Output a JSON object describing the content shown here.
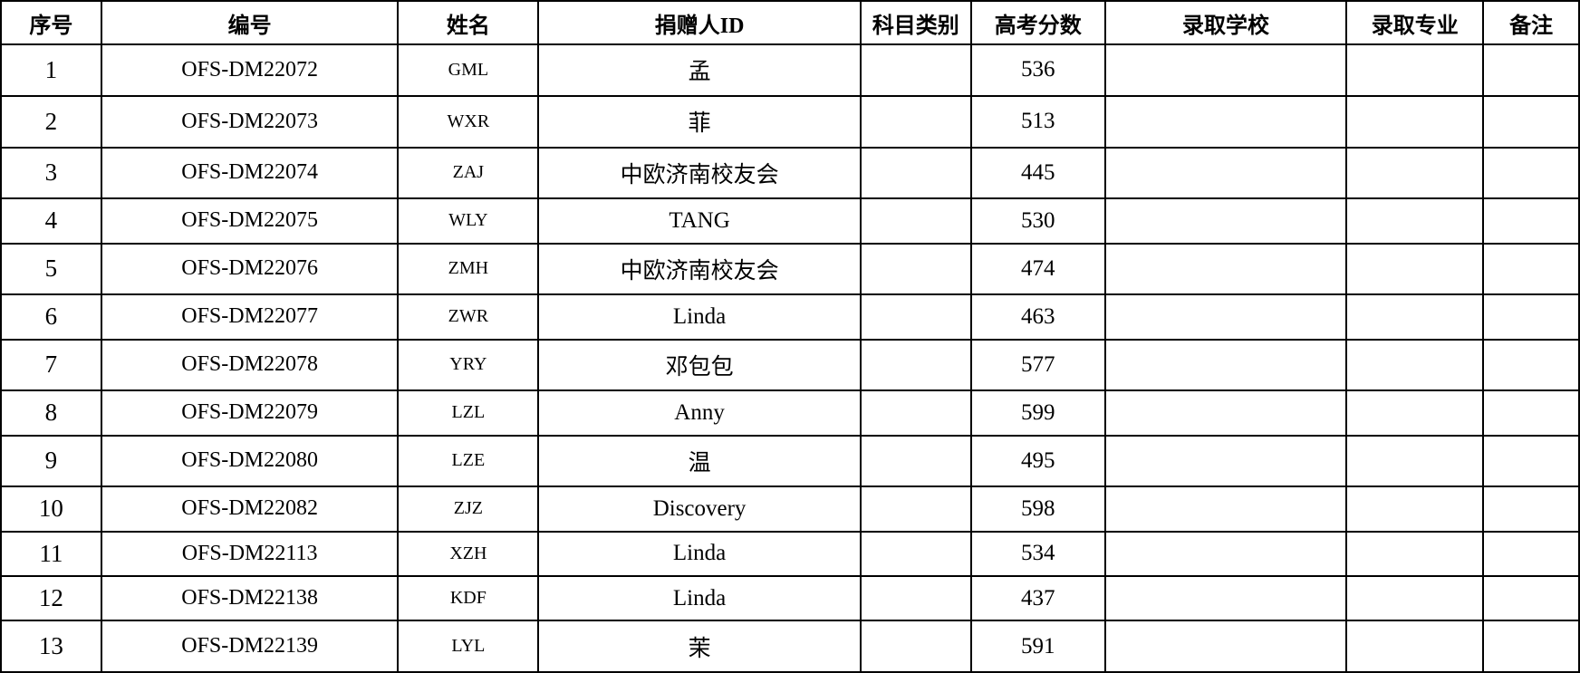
{
  "style": {
    "border_color": "#000000",
    "background_color": "#ffffff",
    "text_color": "#000000"
  },
  "table": {
    "headers": {
      "serial": "序号",
      "code": "编号",
      "name": "姓名",
      "donor_id": "捐赠人ID",
      "subject_category": "科目类别",
      "gaokao_score": "高考分数",
      "admitted_school": "录取学校",
      "admitted_major": "录取专业",
      "remarks": "备注"
    },
    "rows": [
      {
        "cells": [
          "1",
          "OFS-DM22072",
          "GML",
          "孟",
          "",
          "536",
          "",
          "",
          ""
        ]
      },
      {
        "cells": [
          "2",
          "OFS-DM22073",
          "WXR",
          "菲",
          "",
          "513",
          "",
          "",
          ""
        ]
      },
      {
        "cells": [
          "3",
          "OFS-DM22074",
          "ZAJ",
          "中欧济南校友会",
          "",
          "445",
          "",
          "",
          ""
        ]
      },
      {
        "cells": [
          "4",
          "OFS-DM22075",
          "WLY",
          "TANG",
          "",
          "530",
          "",
          "",
          ""
        ]
      },
      {
        "cells": [
          "5",
          "OFS-DM22076",
          "ZMH",
          "中欧济南校友会",
          "",
          "474",
          "",
          "",
          ""
        ]
      },
      {
        "cells": [
          "6",
          "OFS-DM22077",
          "ZWR",
          "Linda",
          "",
          "463",
          "",
          "",
          ""
        ]
      },
      {
        "cells": [
          "7",
          "OFS-DM22078",
          "YRY",
          "邓包包",
          "",
          "577",
          "",
          "",
          ""
        ]
      },
      {
        "cells": [
          "8",
          "OFS-DM22079",
          "LZL",
          "Anny",
          "",
          "599",
          "",
          "",
          ""
        ]
      },
      {
        "cells": [
          "9",
          "OFS-DM22080",
          "LZE",
          "温",
          "",
          "495",
          "",
          "",
          ""
        ]
      },
      {
        "cells": [
          "10",
          "OFS-DM22082",
          "ZJZ",
          "Discovery",
          "",
          "598",
          "",
          "",
          ""
        ]
      },
      {
        "cells": [
          "11",
          "OFS-DM22113",
          "XZH",
          "Linda",
          "",
          "534",
          "",
          "",
          ""
        ]
      },
      {
        "cells": [
          "12",
          "OFS-DM22138",
          "KDF",
          "Linda",
          "",
          "437",
          "",
          "",
          ""
        ]
      },
      {
        "cells": [
          "13",
          "OFS-DM22139",
          "LYL",
          "茉",
          "",
          "591",
          "",
          "",
          ""
        ]
      }
    ]
  }
}
